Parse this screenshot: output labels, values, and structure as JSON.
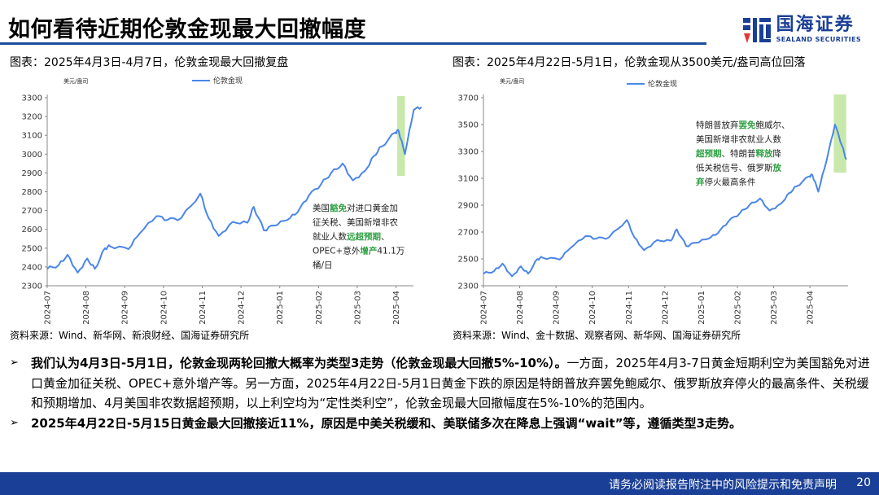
{
  "header": {
    "title": "如何看待近期伦敦金现最大回撤幅度",
    "logo_cn": "国海证券",
    "logo_en": "SEALAND SECURITIES"
  },
  "left_figure": {
    "caption": "图表：2025年4月3日-4月7日，伦敦金现最大回撤复盘",
    "source": "资料来源：Wind、新华网、新浪财经、国海证券研究所"
  },
  "right_figure": {
    "caption": "图表：2025年4月22日-5月1日，伦敦金现从3500美元/盎司高位回落",
    "source": "资料来源：Wind、金十数据、观察者网、新华网、国海证券研究所"
  },
  "bullets": [
    {
      "bold": "我们认为4月3日-5月1日，伦敦金现两轮回撤大概率为类型3走势（伦敦金现最大回撤5%-10%）。",
      "normal": "一方面，2025年4月3-7日黄金短期利空为美国豁免对进口黄金加征关税、OPEC+意外增产等。另一方面，2025年4月22日-5月1日黄金下跌的原因是特朗普放弃罢免鲍威尔、俄罗斯放弃停火的最高条件、关税缓和预期增加、4月美国非农数据超预期，以上利空均为“定性类利空”，伦敦金现最大回撤幅度在5%-10%的范围内。"
    },
    {
      "bold": "2025年4月22日-5月15日黄金最大回撤接近11%，原因是中美关税缓和、美联储多次在降息上强调“wait”等，遵循类型3走势。",
      "normal": ""
    }
  ],
  "footer": {
    "disclaimer": "请务必阅读报告附注中的风险提示和免责声明",
    "page": "20"
  },
  "colors": {
    "brand": "#1a3f96",
    "line": "#4a86e8",
    "highlight": "#b7e08f",
    "note_green": "#2ea043"
  },
  "chart_data": [
    {
      "type": "line",
      "unit": "美元/盎司",
      "legend": "伦敦金现",
      "legend_position": "top",
      "grid": false,
      "ylim": [
        2300,
        3300
      ],
      "yticks": [
        2300,
        2400,
        2500,
        2600,
        2700,
        2800,
        2900,
        3000,
        3100,
        3200,
        3300
      ],
      "xticks": [
        "2024-07",
        "2024-08",
        "2024-09",
        "2024-10",
        "2024-11",
        "2024-12",
        "2025-01",
        "2025-02",
        "2025-03",
        "2025-04"
      ],
      "xlim": [
        "2024-07",
        "2025-04.45"
      ],
      "series": [
        {
          "name": "伦敦金现",
          "x": [
            "2024-07-01",
            "2024-07-10",
            "2024-07-17",
            "2024-07-25",
            "2024-08-02",
            "2024-08-08",
            "2024-08-16",
            "2024-08-20",
            "2024-09-04",
            "2024-09-13",
            "2024-09-26",
            "2024-10-04",
            "2024-10-15",
            "2024-10-30",
            "2024-11-06",
            "2024-11-14",
            "2024-11-25",
            "2024-12-06",
            "2024-12-11",
            "2024-12-19",
            "2024-12-27",
            "2025-01-07",
            "2025-01-15",
            "2025-01-24",
            "2025-02-03",
            "2025-02-11",
            "2025-02-20",
            "2025-02-28",
            "2025-03-07",
            "2025-03-14",
            "2025-03-20",
            "2025-03-31",
            "2025-04-03",
            "2025-04-08",
            "2025-04-15",
            "2025-04-21"
          ],
          "values": [
            2390,
            2410,
            2465,
            2370,
            2445,
            2390,
            2500,
            2510,
            2495,
            2580,
            2670,
            2650,
            2660,
            2790,
            2660,
            2565,
            2640,
            2635,
            2720,
            2595,
            2620,
            2650,
            2690,
            2780,
            2840,
            2900,
            2950,
            2860,
            2910,
            2990,
            3040,
            3115,
            3125,
            3000,
            3235,
            3250
          ]
        }
      ],
      "highlight_range": [
        "2025-04-02",
        "2025-04-08"
      ],
      "annotation": [
        {
          "text": "美国",
          "green": false
        },
        {
          "text": "豁免",
          "green": true
        },
        {
          "text": "对进口黄金加",
          "green": false
        },
        {
          "text": "征关税、美国新增非农",
          "green": false
        },
        {
          "text": "就业人数",
          "green": false
        },
        {
          "text": "远超预期",
          "green": true
        },
        {
          "text": "、",
          "green": false
        },
        {
          "text": "OPEC+意外",
          "green": false
        },
        {
          "text": "增产",
          "green": true
        },
        {
          "text": "41.1万",
          "green": false
        },
        {
          "text": "桶/日",
          "green": false
        }
      ]
    },
    {
      "type": "line",
      "unit": "美元/盎司",
      "legend": "伦敦金现",
      "legend_position": "top",
      "grid": false,
      "ylim": [
        2300,
        3700
      ],
      "yticks": [
        2300,
        2500,
        2700,
        2900,
        3100,
        3300,
        3500,
        3700
      ],
      "xticks": [
        "2024-07",
        "2024-08",
        "2024-09",
        "2024-10",
        "2024-11",
        "2024-12",
        "2025-01",
        "2025-02",
        "2025-03",
        "2025-04"
      ],
      "xlim": [
        "2024-07",
        "2025-05.05"
      ],
      "series": [
        {
          "name": "伦敦金现",
          "x": [
            "2024-07-01",
            "2024-07-10",
            "2024-07-17",
            "2024-07-25",
            "2024-08-02",
            "2024-08-08",
            "2024-08-16",
            "2024-08-20",
            "2024-09-04",
            "2024-09-13",
            "2024-09-26",
            "2024-10-04",
            "2024-10-15",
            "2024-10-30",
            "2024-11-06",
            "2024-11-14",
            "2024-11-25",
            "2024-12-06",
            "2024-12-11",
            "2024-12-19",
            "2024-12-27",
            "2025-01-07",
            "2025-01-15",
            "2025-01-24",
            "2025-02-03",
            "2025-02-11",
            "2025-02-20",
            "2025-02-28",
            "2025-03-07",
            "2025-03-14",
            "2025-03-20",
            "2025-03-31",
            "2025-04-03",
            "2025-04-08",
            "2025-04-15",
            "2025-04-22",
            "2025-04-28",
            "2025-05-01"
          ],
          "values": [
            2390,
            2410,
            2465,
            2370,
            2445,
            2390,
            2500,
            2510,
            2495,
            2580,
            2670,
            2650,
            2660,
            2790,
            2660,
            2565,
            2640,
            2635,
            2720,
            2595,
            2620,
            2650,
            2690,
            2780,
            2840,
            2900,
            2950,
            2860,
            2910,
            2990,
            3040,
            3115,
            3125,
            3000,
            3235,
            3500,
            3340,
            3240
          ]
        }
      ],
      "highlight_range": [
        "2025-04-21",
        "2025-05-01"
      ],
      "annotation": [
        {
          "text": "特朗普放弃",
          "green": false
        },
        {
          "text": "罢免",
          "green": true
        },
        {
          "text": "鲍威尔、",
          "green": false
        },
        {
          "text": "美国新增非农就业人数",
          "green": false
        },
        {
          "text": "超预期",
          "green": true
        },
        {
          "text": "、特朗普",
          "green": false
        },
        {
          "text": "释放",
          "green": true
        },
        {
          "text": "降",
          "green": false
        },
        {
          "text": "低关税信号、俄罗斯",
          "green": false
        },
        {
          "text": "放",
          "green": true
        },
        {
          "text": "弃",
          "green": true
        },
        {
          "text": "停火最高条件",
          "green": false
        }
      ]
    }
  ]
}
